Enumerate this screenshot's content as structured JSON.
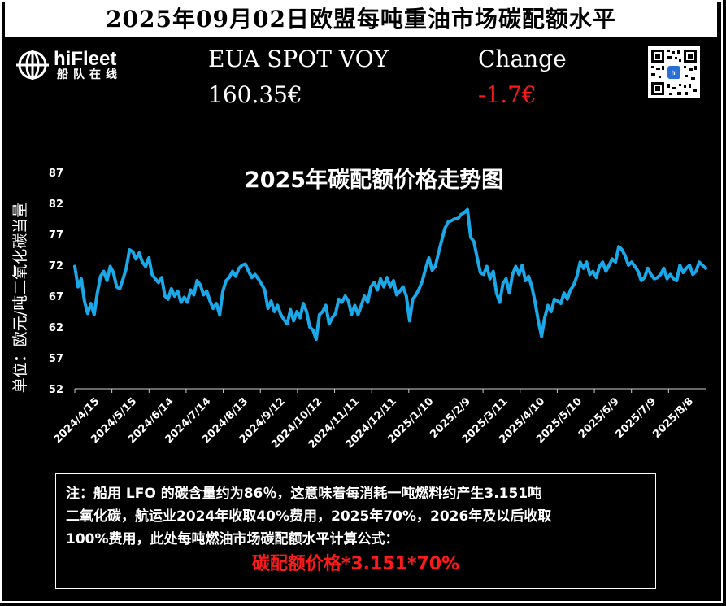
{
  "header": {
    "title": "2025年09月02日欧盟每吨重油市场碳配额水平"
  },
  "logo": {
    "name_en": "hiFleet",
    "name_cn": "船队在线"
  },
  "quote": {
    "price_label": "EUA SPOT VOY",
    "price_value": "160.35€",
    "change_label": "Change",
    "change_value": "-1.7€"
  },
  "colors": {
    "background": "#000000",
    "line": "#1aa8e8",
    "negative": "#ff1a1a",
    "text": "#ffffff"
  },
  "chart_data": {
    "type": "line",
    "title": "2025年碳配额价格走势图",
    "ylabel": "单位：欧元/吨二氧化碳当量",
    "xlabel": "",
    "ylim": [
      52,
      87
    ],
    "yticks": [
      52,
      57,
      62,
      67,
      72,
      77,
      82,
      87
    ],
    "xticks": [
      "2024/4/15",
      "2024/5/15",
      "2024/6/14",
      "2024/7/14",
      "2024/8/13",
      "2024/9/12",
      "2024/10/12",
      "2024/11/11",
      "2024/12/11",
      "2025/1/10",
      "2025/2/9",
      "2025/3/11",
      "2025/4/10",
      "2025/5/10",
      "2025/6/9",
      "2025/7/9",
      "2025/8/8"
    ],
    "grid": false,
    "legend": "none",
    "series": [
      {
        "values": [
          71.8,
          68.5,
          69.8,
          66.2,
          64.2,
          65.8,
          64.0,
          67.5,
          70.2,
          71.0,
          69.5,
          71.8,
          70.8,
          68.5,
          68.2,
          69.8,
          71.5,
          74.5,
          74.2,
          73.0,
          74.0,
          72.5,
          71.8,
          73.2,
          70.5,
          69.8,
          69.2,
          70.0,
          67.0,
          66.5,
          68.2,
          67.0,
          67.8,
          66.0,
          66.8,
          66.0,
          68.0,
          67.2,
          69.5,
          68.8,
          67.2,
          67.8,
          66.2,
          65.0,
          65.8,
          64.0,
          67.8,
          69.5,
          70.0,
          71.0,
          70.2,
          71.5,
          72.0,
          72.2,
          71.0,
          70.0,
          70.5,
          69.8,
          69.0,
          68.0,
          65.0,
          66.2,
          64.5,
          65.5,
          64.0,
          63.2,
          62.5,
          64.8,
          63.0,
          64.5,
          63.5,
          65.8,
          64.5,
          62.0,
          61.5,
          60.0,
          64.0,
          64.5,
          65.5,
          62.5,
          63.5,
          64.2,
          66.5,
          66.0,
          67.0,
          66.2,
          64.0,
          65.5,
          64.0,
          65.5,
          67.0,
          66.0,
          68.5,
          69.2,
          68.0,
          69.8,
          68.5,
          70.0,
          68.5,
          69.5,
          67.2,
          67.8,
          68.5,
          67.0,
          63.0,
          66.5,
          67.2,
          68.2,
          69.5,
          71.5,
          73.2,
          71.2,
          71.8,
          74.0,
          76.0,
          78.0,
          79.0,
          79.2,
          79.5,
          79.5,
          80.2,
          80.5,
          81.0,
          76.5,
          75.8,
          73.2,
          70.8,
          70.5,
          71.8,
          69.8,
          71.0,
          67.5,
          66.0,
          69.0,
          69.8,
          67.5,
          70.5,
          71.8,
          70.5,
          72.0,
          69.5,
          70.2,
          68.5,
          66.0,
          63.0,
          60.5,
          63.5,
          65.5,
          64.5,
          66.5,
          66.2,
          65.8,
          67.5,
          66.5,
          68.0,
          68.8,
          70.2,
          72.5,
          71.5,
          72.5,
          70.5,
          71.0,
          70.0,
          71.8,
          72.5,
          71.0,
          72.0,
          73.0,
          72.5,
          75.0,
          74.5,
          73.5,
          72.0,
          72.5,
          71.8,
          71.0,
          69.5,
          70.0,
          71.5,
          70.5,
          69.8,
          70.0,
          70.5,
          71.5,
          69.8,
          70.5,
          69.8,
          69.5,
          72.0,
          70.8,
          71.5,
          72.0,
          70.5,
          71.0,
          72.5,
          72.0,
          71.5
        ]
      }
    ]
  },
  "note": {
    "line1": "注：船用 LFO 的碳含量约为86％，这意味着每消耗一吨燃料约产生3.151吨",
    "line2": "二氧化碳，航运业2024年收取40%费用，2025年70%，2026年及以后收取",
    "line3": "100%费用，此处每吨燃油市场碳配额水平计算公式：",
    "formula": "碳配额价格*3.151*70%"
  }
}
